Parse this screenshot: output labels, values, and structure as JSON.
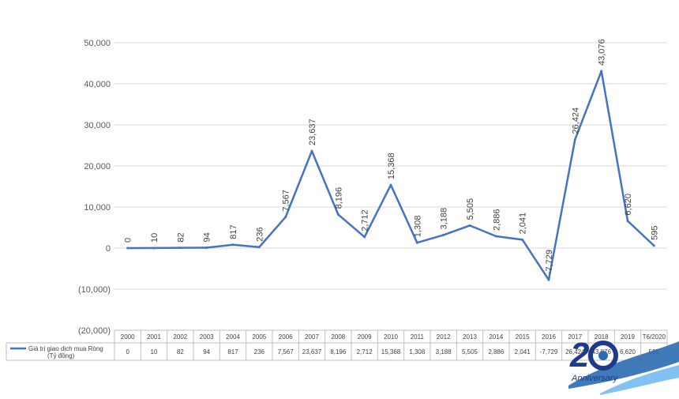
{
  "chart_data": {
    "type": "line",
    "categories": [
      "2000",
      "2001",
      "2002",
      "2003",
      "2004",
      "2005",
      "2006",
      "2007",
      "2008",
      "2009",
      "2010",
      "2011",
      "2012",
      "2013",
      "2014",
      "2015",
      "2016",
      "2017",
      "2018",
      "2019",
      "T6/2020"
    ],
    "series": [
      {
        "name": "Giá trị giao dịch mua Ròng (Tỷ đồng)",
        "values": [
          0,
          10,
          82,
          94,
          817,
          236,
          7567,
          23637,
          8196,
          2712,
          15368,
          1308,
          3188,
          5505,
          2886,
          2041,
          -7729,
          26424,
          43076,
          6620,
          595
        ],
        "point_labels": [
          "0",
          "10",
          "82",
          "94",
          "817",
          "236",
          "7,567",
          "23,637",
          "8,196",
          "2,712",
          "15,368",
          "1,308",
          "3,188",
          "5,505",
          "2,886",
          "2,041",
          "-7,729",
          "26,424",
          "43,076",
          "6,620",
          "595"
        ],
        "table_labels": [
          "0",
          "10",
          "82",
          "94",
          "817",
          "236",
          "7,567",
          "23,637",
          "8,196",
          "2,712",
          "15,368",
          "1,308",
          "3,188",
          "5,505",
          "2,886",
          "2,041",
          "-7,729",
          "26,424",
          "43,076",
          "6,620",
          "595"
        ]
      }
    ],
    "title": "",
    "xlabel": "",
    "ylabel": "",
    "ylim": [
      -20000,
      50000
    ],
    "yticks": [
      50000,
      40000,
      30000,
      20000,
      10000,
      0,
      -10000,
      -20000
    ],
    "ytick_labels": [
      "50,000",
      "40,000",
      "30,000",
      "20,000",
      "10,000",
      "0",
      "(10,000)",
      "(20,000)"
    ],
    "grid": true,
    "legend_position": "bottom-left (inside data table)",
    "line_color": "#4472C4",
    "grid_color": "#D9D9D9",
    "text_color": "#595959"
  },
  "logo": {
    "name": "20-anniversary-logo",
    "text": "Anniversary",
    "colors": [
      "#2B6CB0",
      "#1E3A8A",
      "#63B3ED"
    ]
  }
}
